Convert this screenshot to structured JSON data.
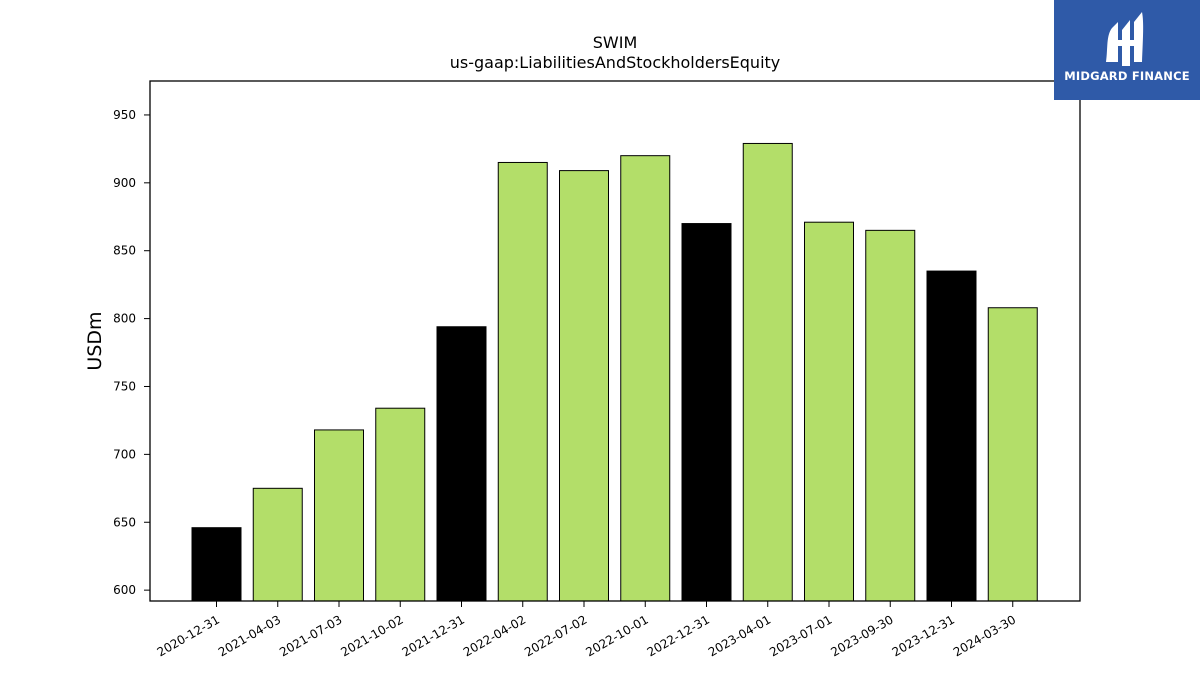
{
  "chart_data": {
    "type": "bar",
    "title": "SWIM",
    "subtitle": "us-gaap:LiabilitiesAndStockholdersEquity",
    "ylabel": "USDm",
    "xlabel": "",
    "ylim": [
      592,
      975
    ],
    "yticks": [
      600,
      650,
      700,
      750,
      800,
      850,
      900,
      950
    ],
    "grid": false,
    "categories": [
      "2020-12-31",
      "2021-04-03",
      "2021-07-03",
      "2021-10-02",
      "2021-12-31",
      "2022-04-02",
      "2022-07-02",
      "2022-10-01",
      "2022-12-31",
      "2023-04-01",
      "2023-07-01",
      "2023-09-30",
      "2023-12-31",
      "2024-03-30"
    ],
    "values": [
      646,
      675,
      718,
      734,
      794,
      915,
      909,
      920,
      870,
      929,
      871,
      865,
      835,
      808
    ],
    "highlight": [
      true,
      false,
      false,
      false,
      true,
      false,
      false,
      false,
      true,
      false,
      false,
      false,
      true,
      false
    ],
    "colors": {
      "bar": "#b3de69",
      "highlight": "#000000",
      "edge": "#000000"
    }
  },
  "logo": {
    "text": "MIDGARD FINANCE",
    "background": "#2f5aa8"
  }
}
